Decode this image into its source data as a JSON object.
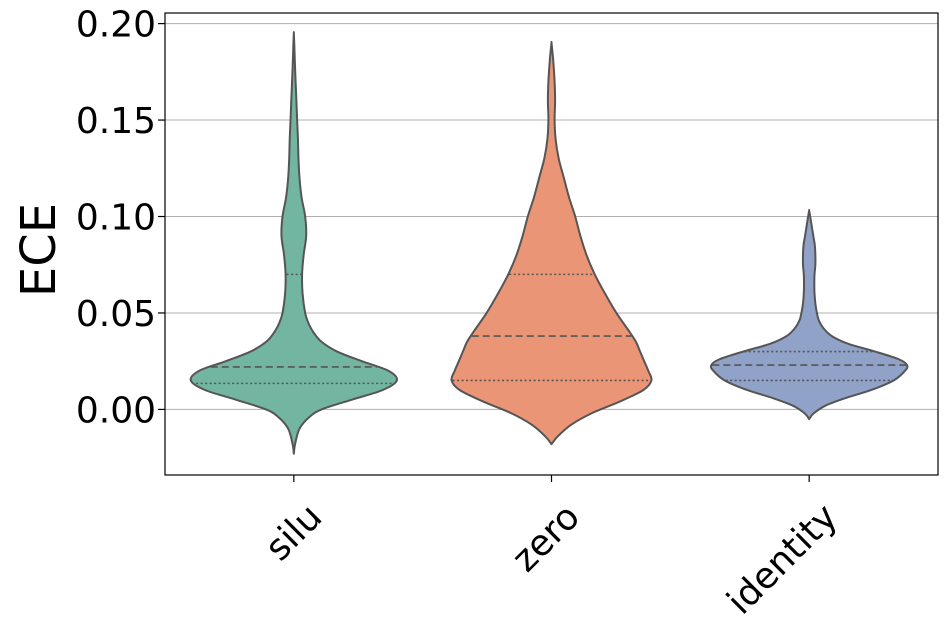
{
  "chart_data": {
    "type": "violin",
    "title": "",
    "xlabel": "",
    "ylabel": "ECE",
    "ylim": [
      -0.034,
      0.2055
    ],
    "y_ticks": [
      "0.00",
      "0.05",
      "0.10",
      "0.15",
      "0.20"
    ],
    "y_tick_values": [
      0.0,
      0.05,
      0.1,
      0.15,
      0.2
    ],
    "grid": "horizontal",
    "legend": "none",
    "categories": [
      "silu",
      "zero",
      "identity"
    ],
    "colors": [
      "#72b5a0",
      "#ea9676",
      "#90a2c7"
    ],
    "edge_color": "#555555",
    "violins": [
      {
        "category": "silu",
        "min": -0.023,
        "max": 0.195,
        "quartiles": [
          0.0135,
          0.022,
          0.07
        ],
        "profile": [
          [
            -0.023,
            0.0
          ],
          [
            -0.018,
            0.012
          ],
          [
            -0.01,
            0.055
          ],
          [
            -0.004,
            0.15
          ],
          [
            0.0,
            0.27
          ],
          [
            0.005,
            0.56
          ],
          [
            0.01,
            0.86
          ],
          [
            0.015,
            1.0
          ],
          [
            0.02,
            0.92
          ],
          [
            0.025,
            0.66
          ],
          [
            0.03,
            0.42
          ],
          [
            0.035,
            0.27
          ],
          [
            0.04,
            0.19
          ],
          [
            0.045,
            0.14
          ],
          [
            0.05,
            0.11
          ],
          [
            0.06,
            0.085
          ],
          [
            0.07,
            0.08
          ],
          [
            0.08,
            0.095
          ],
          [
            0.09,
            0.12
          ],
          [
            0.1,
            0.11
          ],
          [
            0.11,
            0.075
          ],
          [
            0.12,
            0.055
          ],
          [
            0.13,
            0.045
          ],
          [
            0.14,
            0.04
          ],
          [
            0.15,
            0.032
          ],
          [
            0.16,
            0.025
          ],
          [
            0.17,
            0.017
          ],
          [
            0.18,
            0.01
          ],
          [
            0.19,
            0.004
          ],
          [
            0.195,
            0.0
          ]
        ]
      },
      {
        "category": "zero",
        "min": -0.018,
        "max": 0.19,
        "quartiles": [
          0.015,
          0.038,
          0.07
        ],
        "profile": [
          [
            -0.018,
            0.0
          ],
          [
            -0.014,
            0.06
          ],
          [
            -0.008,
            0.19
          ],
          [
            -0.002,
            0.39
          ],
          [
            0.004,
            0.66
          ],
          [
            0.01,
            0.89
          ],
          [
            0.015,
            0.97
          ],
          [
            0.02,
            0.94
          ],
          [
            0.025,
            0.9
          ],
          [
            0.03,
            0.86
          ],
          [
            0.035,
            0.82
          ],
          [
            0.04,
            0.76
          ],
          [
            0.05,
            0.63
          ],
          [
            0.06,
            0.52
          ],
          [
            0.07,
            0.42
          ],
          [
            0.08,
            0.34
          ],
          [
            0.09,
            0.28
          ],
          [
            0.1,
            0.23
          ],
          [
            0.11,
            0.17
          ],
          [
            0.12,
            0.12
          ],
          [
            0.13,
            0.07
          ],
          [
            0.14,
            0.04
          ],
          [
            0.15,
            0.03
          ],
          [
            0.16,
            0.035
          ],
          [
            0.17,
            0.03
          ],
          [
            0.18,
            0.018
          ],
          [
            0.186,
            0.008
          ],
          [
            0.19,
            0.0
          ]
        ]
      },
      {
        "category": "identity",
        "min": -0.005,
        "max": 0.103,
        "quartiles": [
          0.015,
          0.023,
          0.03
        ],
        "profile": [
          [
            -0.005,
            0.0
          ],
          [
            -0.002,
            0.045
          ],
          [
            0.002,
            0.16
          ],
          [
            0.006,
            0.36
          ],
          [
            0.01,
            0.6
          ],
          [
            0.015,
            0.82
          ],
          [
            0.02,
            0.93
          ],
          [
            0.023,
            0.95
          ],
          [
            0.026,
            0.87
          ],
          [
            0.03,
            0.64
          ],
          [
            0.034,
            0.38
          ],
          [
            0.038,
            0.22
          ],
          [
            0.042,
            0.14
          ],
          [
            0.046,
            0.095
          ],
          [
            0.05,
            0.075
          ],
          [
            0.055,
            0.06
          ],
          [
            0.06,
            0.052
          ],
          [
            0.065,
            0.05
          ],
          [
            0.07,
            0.052
          ],
          [
            0.075,
            0.06
          ],
          [
            0.08,
            0.06
          ],
          [
            0.085,
            0.055
          ],
          [
            0.09,
            0.04
          ],
          [
            0.095,
            0.025
          ],
          [
            0.1,
            0.01
          ],
          [
            0.103,
            0.0
          ]
        ]
      }
    ]
  }
}
